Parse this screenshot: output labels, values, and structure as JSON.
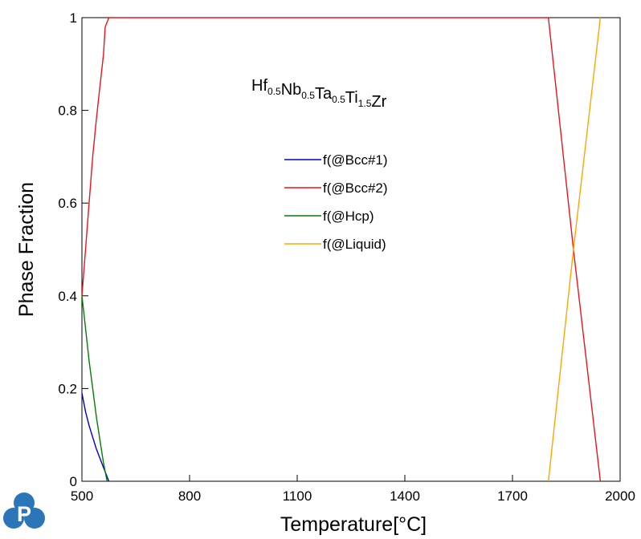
{
  "chart_data": {
    "type": "line",
    "title": {
      "parts": [
        {
          "text": "Hf",
          "sub": "0.5"
        },
        {
          "text": "Nb",
          "sub": "0.5"
        },
        {
          "text": "Ta",
          "sub": "0.5"
        },
        {
          "text": "Ti",
          "sub": "1.5"
        },
        {
          "text": "Zr",
          "sub": ""
        }
      ]
    },
    "xlabel": "Temperature[°C]",
    "ylabel": "Phase Fraction",
    "xlim": [
      500,
      2000
    ],
    "ylim": [
      0,
      1
    ],
    "xticks": [
      "500",
      "800",
      "1100",
      "1400",
      "1700",
      "2000"
    ],
    "yticks": [
      "0",
      "0.2",
      "0.4",
      "0.6",
      "0.8",
      "1"
    ],
    "grid": false,
    "legend_position": "center",
    "series": [
      {
        "name": "f(@Bcc#1)",
        "color": "#0000cc",
        "x": [
          500,
          510,
          520,
          530,
          540,
          550,
          560,
          570,
          575
        ],
        "y": [
          0.19,
          0.15,
          0.12,
          0.095,
          0.07,
          0.05,
          0.03,
          0.01,
          0.0
        ]
      },
      {
        "name": "f(@Bcc#2)",
        "color": "#e8151b",
        "x": [
          500,
          510,
          520,
          530,
          540,
          550,
          560,
          565,
          570,
          575,
          580,
          590,
          1800,
          1870,
          1945
        ],
        "y": [
          0.4,
          0.5,
          0.6,
          0.7,
          0.78,
          0.85,
          0.92,
          0.98,
          0.99,
          1.0,
          1.0,
          1.0,
          1.0,
          0.5,
          0.0
        ]
      },
      {
        "name": "f(@Hcp)",
        "color": "#008000",
        "x": [
          500,
          510,
          520,
          530,
          540,
          550,
          560,
          570
        ],
        "y": [
          0.4,
          0.33,
          0.26,
          0.2,
          0.14,
          0.09,
          0.04,
          0.0
        ]
      },
      {
        "name": "f(@Liquid)",
        "color": "#ffa500",
        "x": [
          1800,
          1870,
          1945
        ],
        "y": [
          0.0,
          0.5,
          1.0
        ]
      }
    ]
  },
  "logo": {
    "name": "P",
    "color": "#2b76b9"
  }
}
